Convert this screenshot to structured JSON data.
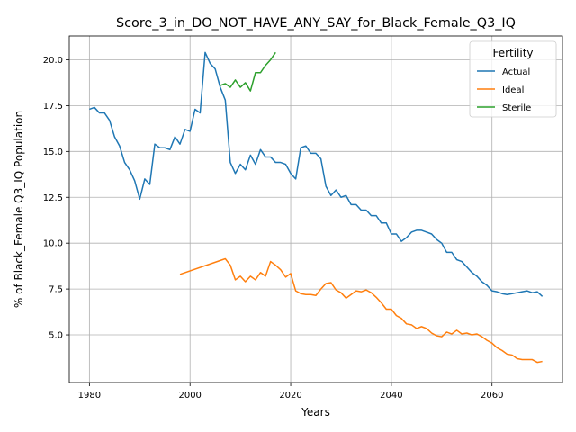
{
  "chart_data": {
    "type": "line",
    "title": "Score_3_in_DO_NOT_HAVE_ANY_SAY_for_Black_Female_Q3_IQ",
    "xlabel": "Years",
    "ylabel": "% of Black_Female Q3_IQ Population",
    "xlim": [
      1976,
      2074
    ],
    "ylim": [
      2.4,
      21.3
    ],
    "xticks": [
      1980,
      2000,
      2020,
      2040,
      2060
    ],
    "yticks": [
      5.0,
      7.5,
      10.0,
      12.5,
      15.0,
      17.5,
      20.0
    ],
    "xtick_labels": [
      "1980",
      "2000",
      "2020",
      "2040",
      "2060"
    ],
    "ytick_labels": [
      "5.0",
      "7.5",
      "10.0",
      "12.5",
      "15.0",
      "17.5",
      "20.0"
    ],
    "grid": true,
    "legend": {
      "title": "Fertility",
      "placement": "top-right"
    },
    "series": [
      {
        "name": "Actual",
        "color": "#1f77b4",
        "x": [
          1980,
          1981,
          1982,
          1983,
          1984,
          1985,
          1986,
          1987,
          1988,
          1989,
          1990,
          1991,
          1992,
          1993,
          1994,
          1995,
          1996,
          1997,
          1998,
          1999,
          2000,
          2001,
          2002,
          2003,
          2004,
          2005,
          2006,
          2007,
          2008,
          2009,
          2010,
          2011,
          2012,
          2013,
          2014,
          2015,
          2016,
          2017,
          2018,
          2019,
          2020,
          2021,
          2022,
          2023,
          2024,
          2025,
          2026,
          2027,
          2028,
          2029,
          2030,
          2031,
          2032,
          2033,
          2034,
          2035,
          2036,
          2037,
          2038,
          2039,
          2040,
          2041,
          2042,
          2043,
          2044,
          2045,
          2046,
          2047,
          2048,
          2049,
          2050,
          2051,
          2052,
          2053,
          2054,
          2055,
          2056,
          2057,
          2058,
          2059,
          2060,
          2061,
          2062,
          2063,
          2064,
          2065,
          2066,
          2067,
          2068,
          2069,
          2070
        ],
        "values": [
          17.3,
          17.4,
          17.1,
          17.1,
          16.7,
          15.8,
          15.3,
          14.4,
          14.0,
          13.4,
          12.4,
          13.5,
          13.2,
          15.4,
          15.2,
          15.2,
          15.1,
          15.8,
          15.4,
          16.2,
          16.1,
          17.3,
          17.1,
          20.4,
          19.8,
          19.5,
          18.5,
          17.8,
          14.4,
          13.8,
          14.3,
          14.0,
          14.8,
          14.3,
          15.1,
          14.7,
          14.7,
          14.4,
          14.4,
          14.3,
          13.8,
          13.5,
          15.2,
          15.3,
          14.9,
          14.9,
          14.6,
          13.1,
          12.6,
          12.9,
          12.5,
          12.6,
          12.1,
          12.1,
          11.8,
          11.8,
          11.5,
          11.5,
          11.1,
          11.1,
          10.5,
          10.5,
          10.1,
          10.3,
          10.6,
          10.7,
          10.7,
          10.6,
          10.5,
          10.2,
          10.0,
          9.5,
          9.5,
          9.1,
          9.0,
          8.7,
          8.4,
          8.2,
          7.9,
          7.7,
          7.4,
          7.35,
          7.25,
          7.2,
          7.25,
          7.3,
          7.35,
          7.4,
          7.3,
          7.35,
          7.1
        ]
      },
      {
        "name": "Ideal",
        "color": "#ff7f0e",
        "x": [
          1998,
          2007,
          2008,
          2009,
          2010,
          2011,
          2012,
          2013,
          2014,
          2015,
          2016,
          2017,
          2018,
          2019,
          2020,
          2021,
          2022,
          2023,
          2024,
          2025,
          2026,
          2027,
          2028,
          2029,
          2030,
          2031,
          2032,
          2033,
          2034,
          2035,
          2036,
          2037,
          2038,
          2039,
          2040,
          2041,
          2042,
          2043,
          2044,
          2045,
          2046,
          2047,
          2048,
          2049,
          2050,
          2051,
          2052,
          2053,
          2054,
          2055,
          2056,
          2057,
          2058,
          2059,
          2060,
          2061,
          2062,
          2063,
          2064,
          2065,
          2066,
          2067,
          2068,
          2069,
          2070
        ],
        "values": [
          8.3,
          9.15,
          8.8,
          8.0,
          8.2,
          7.9,
          8.2,
          8.0,
          8.4,
          8.2,
          9.0,
          8.8,
          8.55,
          8.15,
          8.35,
          7.4,
          7.25,
          7.2,
          7.2,
          7.15,
          7.5,
          7.8,
          7.85,
          7.45,
          7.3,
          7.0,
          7.2,
          7.4,
          7.35,
          7.45,
          7.3,
          7.05,
          6.75,
          6.4,
          6.4,
          6.05,
          5.9,
          5.6,
          5.55,
          5.35,
          5.45,
          5.35,
          5.1,
          4.95,
          4.9,
          5.15,
          5.05,
          5.25,
          5.05,
          5.1,
          5.0,
          5.05,
          4.9,
          4.7,
          4.55,
          4.3,
          4.15,
          3.95,
          3.9,
          3.7,
          3.65,
          3.65,
          3.65,
          3.5,
          3.55
        ]
      },
      {
        "name": "Sterile",
        "color": "#2ca02c",
        "x": [
          2006,
          2007,
          2008,
          2009,
          2010,
          2011,
          2012,
          2013,
          2014,
          2015,
          2016,
          2017
        ],
        "values": [
          18.6,
          18.7,
          18.5,
          18.9,
          18.5,
          18.75,
          18.3,
          19.3,
          19.3,
          19.7,
          20.0,
          20.4
        ]
      }
    ]
  }
}
